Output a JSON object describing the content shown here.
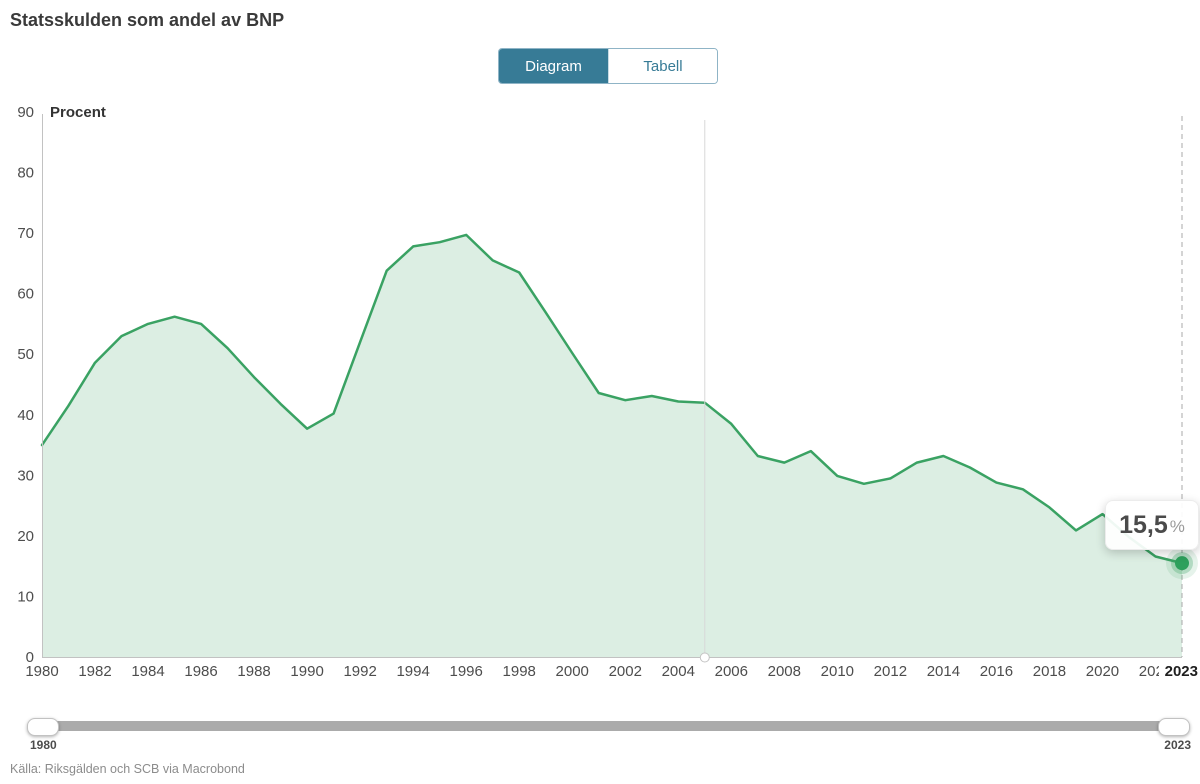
{
  "page": {
    "title": "Statsskulden som andel av BNP"
  },
  "toggle": {
    "diagram_label": "Diagram",
    "tabell_label": "Tabell"
  },
  "tooltip": {
    "value": "15,5",
    "unit": "%"
  },
  "slider": {
    "start_label": "1980",
    "end_label": "2023"
  },
  "source": "Källa: Riksgälden och SCB via Macrobond",
  "colors": {
    "line": "#3aa263",
    "fill": "#dceee3",
    "dot": "#2da05c",
    "accent_blue": "#377b96",
    "axis_line": "#c2c2c2",
    "axis_text": "#4d4d4d",
    "dashed_line": "#a8a8a8",
    "crosshair_line": "#d8d8d8",
    "bold_tick_text": "#1f1f1f"
  },
  "chart_data": {
    "type": "area",
    "title": "Statsskulden som andel av BNP",
    "ylabel": "Procent",
    "xlabel": "",
    "ylim": [
      0,
      90
    ],
    "x_range": [
      1980,
      2023
    ],
    "grid": false,
    "legend": false,
    "y_ticks": [
      0,
      10,
      20,
      30,
      40,
      50,
      60,
      70,
      80,
      90
    ],
    "x_ticks": [
      1980,
      1982,
      1984,
      1986,
      1988,
      1990,
      1992,
      1994,
      1996,
      1998,
      2000,
      2002,
      2004,
      2006,
      2008,
      2010,
      2012,
      2014,
      2016,
      2018,
      2020,
      2022
    ],
    "end_tick_label": "2023",
    "crosshair_year": 2005,
    "highlight": {
      "year": 2023,
      "value": 15.5,
      "label": "15,5%"
    },
    "x": [
      1980,
      1981,
      1982,
      1983,
      1984,
      1985,
      1986,
      1987,
      1988,
      1989,
      1990,
      1991,
      1992,
      1993,
      1994,
      1995,
      1996,
      1997,
      1998,
      1999,
      2000,
      2001,
      2002,
      2003,
      2004,
      2005,
      2006,
      2007,
      2008,
      2009,
      2010,
      2011,
      2012,
      2013,
      2014,
      2015,
      2016,
      2017,
      2018,
      2019,
      2020,
      2021,
      2022,
      2023
    ],
    "values": [
      35.0,
      41.5,
      48.6,
      53.0,
      55.0,
      56.2,
      55.0,
      51.0,
      46.2,
      41.8,
      37.7,
      40.2,
      52.0,
      63.8,
      67.8,
      68.5,
      69.7,
      65.5,
      63.5,
      56.9,
      50.2,
      43.6,
      42.4,
      43.1,
      42.2,
      42.0,
      38.5,
      33.2,
      32.1,
      34.0,
      29.9,
      28.6,
      29.5,
      32.1,
      33.2,
      31.3,
      28.8,
      27.7,
      24.7,
      20.9,
      23.6,
      19.8,
      16.6,
      15.5
    ]
  }
}
